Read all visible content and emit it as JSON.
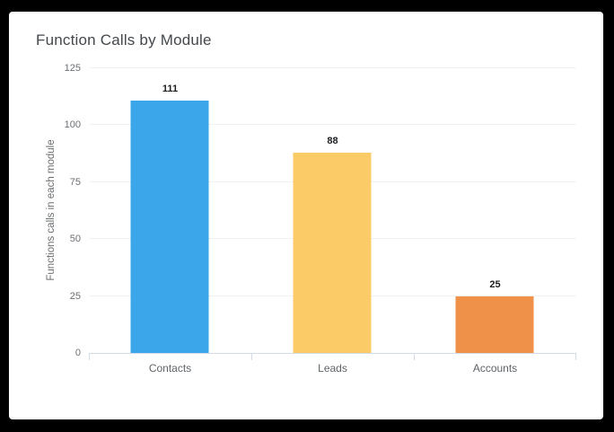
{
  "window": {
    "frame_color": "#000000",
    "card_color": "#ffffff"
  },
  "chart": {
    "title": "Function Calls by Module"
  },
  "chart_data": {
    "type": "bar",
    "title": "Function Calls by Module",
    "categories": [
      "Contacts",
      "Leads",
      "Accounts"
    ],
    "values": [
      111,
      88,
      25
    ],
    "bar_colors": [
      "#3BA6EA",
      "#FACB66",
      "#F0914A"
    ],
    "value_labels": [
      111,
      88,
      25
    ],
    "xlabel": "",
    "ylabel": "Functions calls in each module",
    "ylim": [
      0,
      125
    ],
    "yticks": [
      0,
      25,
      50,
      75,
      100,
      125
    ],
    "grid": true,
    "legend": "none",
    "colors": {
      "title_text": "#43484d",
      "axis_text": "#6b6f73",
      "category_text": "#5f6468",
      "value_text": "#1b1d1f",
      "gridline": "#f0f1f2",
      "axis_line": "#d3dbe8"
    }
  }
}
